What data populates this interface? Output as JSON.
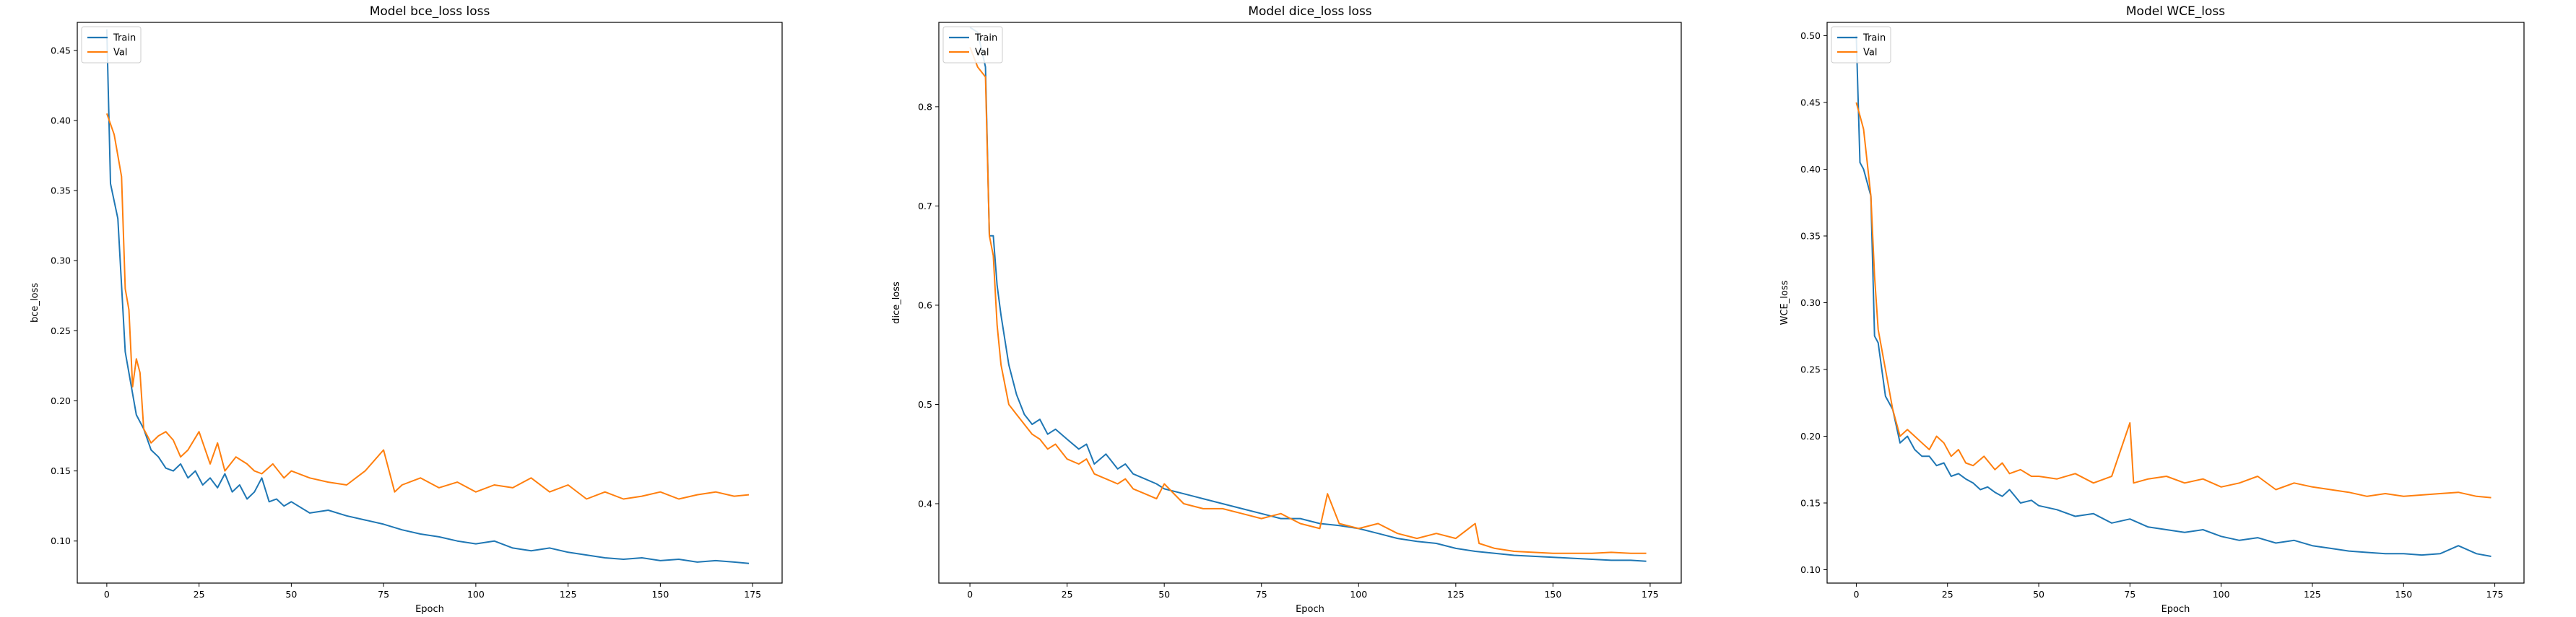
{
  "figure": {
    "colors": {
      "train": "#1f77b4",
      "val": "#ff7f0e",
      "axes": "#000000"
    }
  },
  "chart_data": [
    {
      "type": "line",
      "title": "Model bce_loss loss",
      "xlabel": "Epoch",
      "ylabel": "bce_loss",
      "xlim": [
        -8,
        183
      ],
      "ylim": [
        0.07,
        0.47
      ],
      "xticks": [
        0,
        25,
        50,
        75,
        100,
        125,
        150,
        175
      ],
      "yticks": [
        0.1,
        0.15,
        0.2,
        0.25,
        0.3,
        0.35,
        0.4,
        0.45
      ],
      "legend": {
        "placement": "top-left",
        "entries": [
          "Train",
          "Val"
        ]
      },
      "grid": false,
      "series": [
        {
          "name": "Train",
          "color": "#1f77b4",
          "x": [
            0,
            1,
            3,
            5,
            6,
            8,
            10,
            12,
            14,
            16,
            18,
            20,
            22,
            24,
            26,
            28,
            30,
            32,
            34,
            36,
            38,
            40,
            42,
            44,
            46,
            48,
            50,
            55,
            60,
            65,
            70,
            75,
            80,
            85,
            90,
            95,
            100,
            105,
            110,
            115,
            120,
            125,
            130,
            135,
            140,
            145,
            150,
            155,
            160,
            165,
            170,
            174
          ],
          "y": [
            0.465,
            0.355,
            0.33,
            0.235,
            0.22,
            0.19,
            0.18,
            0.165,
            0.16,
            0.152,
            0.15,
            0.155,
            0.145,
            0.15,
            0.14,
            0.145,
            0.138,
            0.148,
            0.135,
            0.14,
            0.13,
            0.135,
            0.145,
            0.128,
            0.13,
            0.125,
            0.128,
            0.12,
            0.122,
            0.118,
            0.115,
            0.112,
            0.108,
            0.105,
            0.103,
            0.1,
            0.098,
            0.1,
            0.095,
            0.093,
            0.095,
            0.092,
            0.09,
            0.088,
            0.087,
            0.088,
            0.086,
            0.087,
            0.085,
            0.086,
            0.085,
            0.084
          ]
        },
        {
          "name": "Val",
          "color": "#ff7f0e",
          "x": [
            0,
            2,
            4,
            5,
            6,
            7,
            8,
            9,
            10,
            12,
            14,
            16,
            18,
            20,
            22,
            25,
            28,
            30,
            32,
            35,
            38,
            40,
            42,
            45,
            48,
            50,
            55,
            60,
            65,
            70,
            75,
            78,
            80,
            85,
            90,
            95,
            100,
            105,
            110,
            115,
            120,
            125,
            130,
            135,
            140,
            145,
            150,
            155,
            160,
            165,
            170,
            174
          ],
          "y": [
            0.405,
            0.39,
            0.36,
            0.28,
            0.265,
            0.21,
            0.23,
            0.22,
            0.18,
            0.17,
            0.175,
            0.178,
            0.172,
            0.16,
            0.165,
            0.178,
            0.155,
            0.17,
            0.15,
            0.16,
            0.155,
            0.15,
            0.148,
            0.155,
            0.145,
            0.15,
            0.145,
            0.142,
            0.14,
            0.15,
            0.165,
            0.135,
            0.14,
            0.145,
            0.138,
            0.142,
            0.135,
            0.14,
            0.138,
            0.145,
            0.135,
            0.14,
            0.13,
            0.135,
            0.13,
            0.132,
            0.135,
            0.13,
            0.133,
            0.135,
            0.132,
            0.133
          ]
        }
      ]
    },
    {
      "type": "line",
      "title": "Model dice_loss loss",
      "xlabel": "Epoch",
      "ylabel": "dice_loss",
      "xlim": [
        -8,
        183
      ],
      "ylim": [
        0.32,
        0.885
      ],
      "xticks": [
        0,
        25,
        50,
        75,
        100,
        125,
        150,
        175
      ],
      "yticks": [
        0.4,
        0.5,
        0.6,
        0.7,
        0.8
      ],
      "legend": {
        "placement": "top-left",
        "entries": [
          "Train",
          "Val"
        ]
      },
      "grid": false,
      "series": [
        {
          "name": "Train",
          "color": "#1f77b4",
          "x": [
            0,
            2,
            4,
            5,
            6,
            7,
            8,
            10,
            12,
            14,
            16,
            18,
            20,
            22,
            25,
            28,
            30,
            32,
            35,
            38,
            40,
            42,
            45,
            48,
            50,
            55,
            60,
            65,
            70,
            75,
            80,
            85,
            90,
            95,
            100,
            105,
            110,
            115,
            120,
            125,
            130,
            135,
            140,
            145,
            150,
            155,
            160,
            165,
            170,
            174
          ],
          "y": [
            0.88,
            0.875,
            0.84,
            0.67,
            0.67,
            0.62,
            0.59,
            0.54,
            0.51,
            0.49,
            0.48,
            0.485,
            0.47,
            0.475,
            0.465,
            0.455,
            0.46,
            0.44,
            0.45,
            0.435,
            0.44,
            0.43,
            0.425,
            0.42,
            0.415,
            0.41,
            0.405,
            0.4,
            0.395,
            0.39,
            0.385,
            0.385,
            0.38,
            0.378,
            0.375,
            0.37,
            0.365,
            0.362,
            0.36,
            0.355,
            0.352,
            0.35,
            0.348,
            0.347,
            0.346,
            0.345,
            0.344,
            0.343,
            0.343,
            0.342
          ]
        },
        {
          "name": "Val",
          "color": "#ff7f0e",
          "x": [
            0,
            2,
            4,
            5,
            6,
            7,
            8,
            10,
            12,
            14,
            16,
            18,
            20,
            22,
            25,
            28,
            30,
            32,
            35,
            38,
            40,
            42,
            45,
            48,
            50,
            55,
            60,
            65,
            70,
            75,
            80,
            85,
            90,
            92,
            95,
            100,
            105,
            110,
            115,
            120,
            125,
            130,
            131,
            135,
            140,
            145,
            150,
            155,
            160,
            165,
            170,
            174
          ],
          "y": [
            0.86,
            0.84,
            0.83,
            0.67,
            0.65,
            0.58,
            0.54,
            0.5,
            0.49,
            0.48,
            0.47,
            0.465,
            0.455,
            0.46,
            0.445,
            0.44,
            0.445,
            0.43,
            0.425,
            0.42,
            0.425,
            0.415,
            0.41,
            0.405,
            0.42,
            0.4,
            0.395,
            0.395,
            0.39,
            0.385,
            0.39,
            0.38,
            0.375,
            0.41,
            0.38,
            0.375,
            0.38,
            0.37,
            0.365,
            0.37,
            0.365,
            0.38,
            0.36,
            0.355,
            0.352,
            0.351,
            0.35,
            0.35,
            0.35,
            0.351,
            0.35,
            0.35
          ]
        }
      ]
    },
    {
      "type": "line",
      "title": "Model WCE_loss",
      "xlabel": "Epoch",
      "ylabel": "WCE_loss",
      "xlim": [
        -8,
        183
      ],
      "ylim": [
        0.09,
        0.51
      ],
      "xticks": [
        0,
        25,
        50,
        75,
        100,
        125,
        150,
        175
      ],
      "yticks": [
        0.1,
        0.15,
        0.2,
        0.25,
        0.3,
        0.35,
        0.4,
        0.45,
        0.5
      ],
      "legend": {
        "placement": "top-left",
        "entries": [
          "Train",
          "Val"
        ]
      },
      "grid": false,
      "series": [
        {
          "name": "Train",
          "color": "#1f77b4",
          "x": [
            0,
            1,
            2,
            4,
            5,
            6,
            8,
            10,
            12,
            14,
            16,
            18,
            20,
            22,
            24,
            26,
            28,
            30,
            32,
            34,
            36,
            38,
            40,
            42,
            45,
            48,
            50,
            55,
            60,
            65,
            70,
            75,
            80,
            85,
            90,
            95,
            100,
            105,
            110,
            115,
            120,
            125,
            130,
            135,
            140,
            145,
            150,
            155,
            160,
            165,
            170,
            174
          ],
          "y": [
            0.5,
            0.405,
            0.4,
            0.38,
            0.275,
            0.27,
            0.23,
            0.22,
            0.195,
            0.2,
            0.19,
            0.185,
            0.185,
            0.178,
            0.18,
            0.17,
            0.172,
            0.168,
            0.165,
            0.16,
            0.162,
            0.158,
            0.155,
            0.16,
            0.15,
            0.152,
            0.148,
            0.145,
            0.14,
            0.142,
            0.135,
            0.138,
            0.132,
            0.13,
            0.128,
            0.13,
            0.125,
            0.122,
            0.124,
            0.12,
            0.122,
            0.118,
            0.116,
            0.114,
            0.113,
            0.112,
            0.112,
            0.111,
            0.112,
            0.118,
            0.112,
            0.11
          ]
        },
        {
          "name": "Val",
          "color": "#ff7f0e",
          "x": [
            0,
            1,
            2,
            4,
            5,
            6,
            8,
            10,
            12,
            14,
            16,
            18,
            20,
            22,
            24,
            26,
            28,
            30,
            32,
            35,
            38,
            40,
            42,
            45,
            48,
            50,
            55,
            60,
            65,
            70,
            75,
            76,
            80,
            85,
            90,
            95,
            100,
            105,
            110,
            115,
            120,
            125,
            130,
            135,
            140,
            145,
            150,
            155,
            160,
            165,
            170,
            174
          ],
          "y": [
            0.45,
            0.44,
            0.43,
            0.38,
            0.32,
            0.28,
            0.25,
            0.22,
            0.2,
            0.205,
            0.2,
            0.195,
            0.19,
            0.2,
            0.195,
            0.185,
            0.19,
            0.18,
            0.178,
            0.185,
            0.175,
            0.18,
            0.172,
            0.175,
            0.17,
            0.17,
            0.168,
            0.172,
            0.165,
            0.17,
            0.21,
            0.165,
            0.168,
            0.17,
            0.165,
            0.168,
            0.162,
            0.165,
            0.17,
            0.16,
            0.165,
            0.162,
            0.16,
            0.158,
            0.155,
            0.157,
            0.155,
            0.156,
            0.157,
            0.158,
            0.155,
            0.154
          ]
        }
      ]
    }
  ]
}
